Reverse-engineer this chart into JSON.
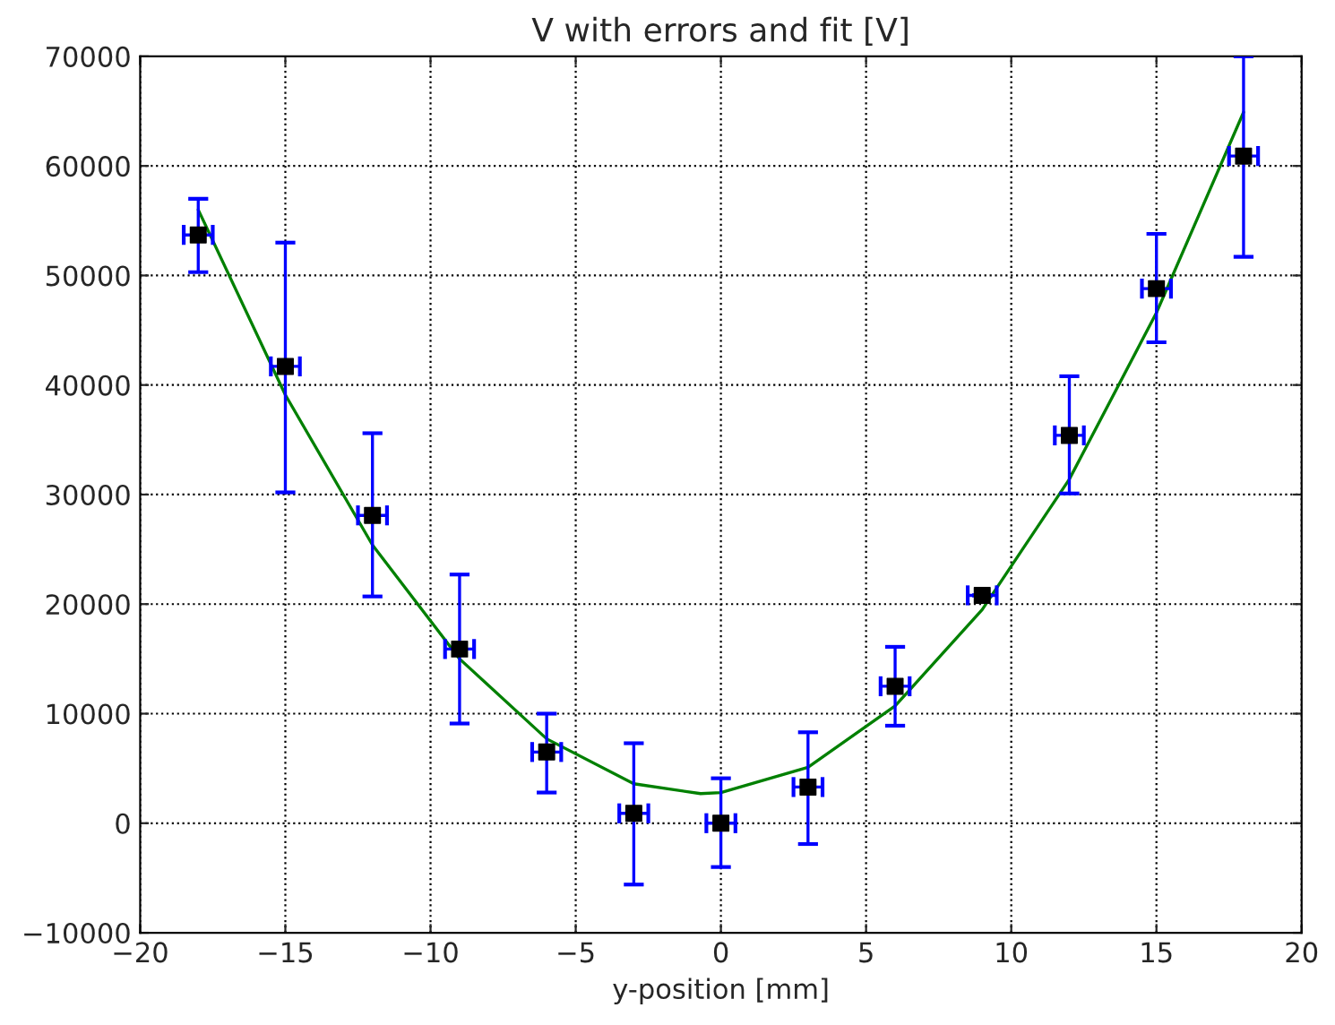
{
  "chart_data": {
    "type": "scatter",
    "title": "V with errors and fit [V]",
    "xlabel": "y-position [mm]",
    "xlim": [
      -20,
      20
    ],
    "ylim": [
      -10000,
      70000
    ],
    "xticks": [
      -20,
      -15,
      -10,
      -5,
      0,
      5,
      10,
      15,
      20
    ],
    "yticks": [
      -10000,
      0,
      10000,
      20000,
      30000,
      40000,
      50000,
      60000,
      70000
    ],
    "grid": true,
    "marker": "square",
    "series": [
      {
        "color": "#000000",
        "x": [
          -18,
          -15,
          -12,
          -9,
          -6,
          -3,
          0,
          3,
          6,
          9,
          12,
          15,
          18
        ],
        "values": [
          53700,
          41700,
          28100,
          15900,
          6500,
          900,
          0,
          3300,
          12500,
          20800,
          35400,
          48800,
          60900
        ],
        "errors": [
          [
            50300,
            57000
          ],
          [
            30200,
            53000
          ],
          [
            20700,
            35600
          ],
          [
            9100,
            22700
          ],
          [
            2800,
            10000
          ],
          [
            -5600,
            7300
          ],
          [
            -4000,
            4100
          ],
          [
            -1900,
            8300
          ],
          [
            8900,
            16100
          ],
          null,
          [
            30100,
            40800
          ],
          [
            43900,
            53800
          ],
          [
            51700,
            70000
          ]
        ],
        "xerrors": [
          0.5,
          0.5,
          0.5,
          0.5,
          0.5,
          0.5,
          0.5,
          0.5,
          0.5,
          0.5,
          0.5,
          0.5,
          0.5
        ]
      },
      {
        "type": "line",
        "color": "#008000",
        "marker": "none",
        "x": [
          -18,
          -15,
          -12,
          -9,
          -6,
          -3,
          -0.7,
          0,
          3,
          6,
          9,
          12,
          15,
          18
        ],
        "values": [
          56000,
          39100,
          25400,
          15000,
          7700,
          3600,
          2700,
          2800,
          5100,
          10700,
          19500,
          31400,
          46600,
          64900
        ]
      }
    ]
  }
}
